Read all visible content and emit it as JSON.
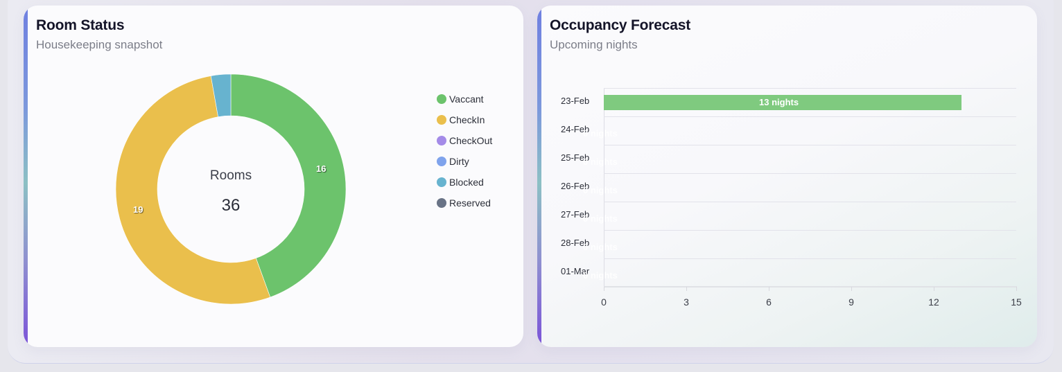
{
  "room_status": {
    "title": "Room Status",
    "subtitle": "Housekeeping snapshot",
    "center_label": "Rooms",
    "center_value": "36",
    "legend": [
      {
        "label": "Vaccant",
        "color": "#6cc36c"
      },
      {
        "label": "CheckIn",
        "color": "#eabf4c"
      },
      {
        "label": "CheckOut",
        "color": "#a48be8"
      },
      {
        "label": "Dirty",
        "color": "#7fa3ec"
      },
      {
        "label": "Blocked",
        "color": "#67b3cf"
      },
      {
        "label": "Reserved",
        "color": "#697386"
      }
    ],
    "slice_labels": {
      "vaccant": "16",
      "checkin": "19"
    }
  },
  "occupancy_forecast": {
    "title": "Occupancy Forecast",
    "subtitle": "Upcoming nights",
    "rows": [
      {
        "date": "23-Feb",
        "label": "13 nights"
      },
      {
        "date": "24-Feb",
        "label": "0 nights"
      },
      {
        "date": "25-Feb",
        "label": "0 nights"
      },
      {
        "date": "26-Feb",
        "label": "0 nights"
      },
      {
        "date": "27-Feb",
        "label": "0 nights"
      },
      {
        "date": "28-Feb",
        "label": "0 nights"
      },
      {
        "date": "01-Mar",
        "label": "0 nights"
      }
    ],
    "x_ticks": [
      "0",
      "3",
      "6",
      "9",
      "12",
      "15"
    ]
  },
  "chart_data": [
    {
      "type": "pie",
      "variant": "donut",
      "title": "Room Status",
      "subtitle": "Housekeeping snapshot",
      "center_text": {
        "label": "Rooms",
        "value": 36
      },
      "categories": [
        "Vaccant",
        "CheckIn",
        "CheckOut",
        "Dirty",
        "Blocked",
        "Reserved"
      ],
      "values": [
        16,
        19,
        0,
        0,
        1,
        0
      ],
      "colors": [
        "#6cc36c",
        "#eabf4c",
        "#a48be8",
        "#7fa3ec",
        "#67b3cf",
        "#697386"
      ],
      "data_labels": {
        "Vaccant": "16",
        "CheckIn": "19"
      },
      "legend_position": "right"
    },
    {
      "type": "bar",
      "orientation": "horizontal",
      "title": "Occupancy Forecast",
      "subtitle": "Upcoming nights",
      "categories": [
        "23-Feb",
        "24-Feb",
        "25-Feb",
        "26-Feb",
        "27-Feb",
        "28-Feb",
        "01-Mar"
      ],
      "values": [
        13,
        0,
        0,
        0,
        0,
        0,
        0
      ],
      "data_labels": [
        "13 nights",
        "0 nights",
        "0 nights",
        "0 nights",
        "0 nights",
        "0 nights",
        "0 nights"
      ],
      "color": "#7fca7f",
      "xlim": [
        0,
        15
      ],
      "x_ticks": [
        0,
        3,
        6,
        9,
        12,
        15
      ],
      "xlabel": "",
      "ylabel": "",
      "grid": true
    }
  ]
}
